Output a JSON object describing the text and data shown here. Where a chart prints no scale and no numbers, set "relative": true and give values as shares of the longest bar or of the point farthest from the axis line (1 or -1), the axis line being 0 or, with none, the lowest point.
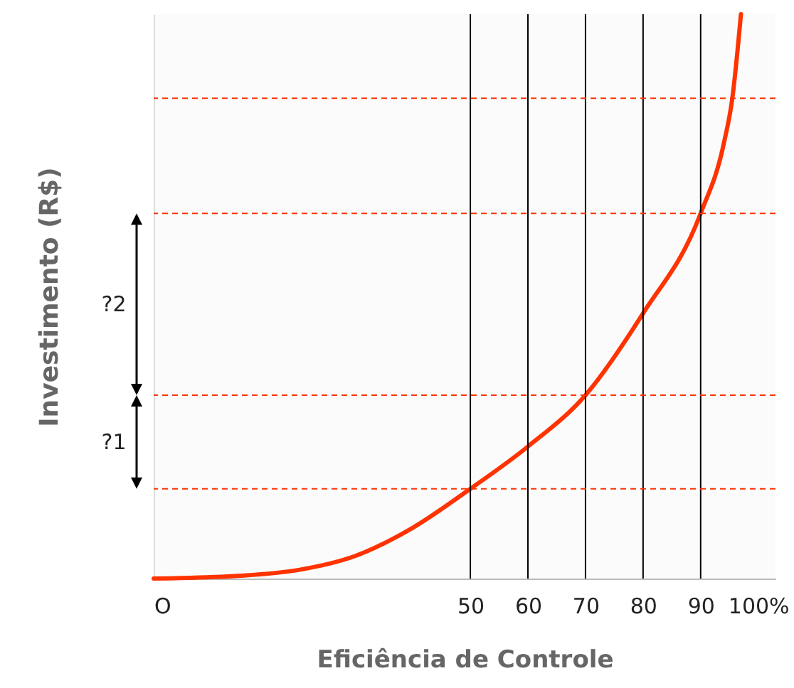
{
  "chart_data": {
    "type": "line",
    "relative": true,
    "xlabel": "Eficiência de Controle",
    "ylabel": "Investimento (R$)",
    "x": [
      -5,
      10,
      20,
      30,
      40,
      50,
      60,
      70,
      80,
      90,
      94,
      95.5,
      97
    ],
    "values": [
      0,
      0.005,
      0.015,
      0.04,
      0.09,
      0.159,
      0.234,
      0.325,
      0.47,
      0.647,
      0.77,
      0.851,
      1
    ],
    "color": "#ff3300",
    "xlim": [
      -5,
      103
    ],
    "xticks": [
      {
        "value": -5,
        "label": "O"
      },
      50,
      60,
      70,
      80,
      90,
      {
        "value": 100,
        "label": "100%"
      }
    ],
    "ref_lines": [
      {
        "axis": "x",
        "value": 50,
        "color": "#000000",
        "line_style": "solid"
      },
      {
        "axis": "x",
        "value": 60,
        "color": "#000000",
        "line_style": "solid"
      },
      {
        "axis": "x",
        "value": 70,
        "color": "#000000",
        "line_style": "solid"
      },
      {
        "axis": "x",
        "value": 80,
        "color": "#000000",
        "line_style": "solid"
      },
      {
        "axis": "x",
        "value": 90,
        "color": "#000000",
        "line_style": "solid"
      },
      {
        "axis": "y",
        "value": 0.159,
        "color": "#ff3300",
        "line_style": "dashed"
      },
      {
        "axis": "y",
        "value": 0.325,
        "color": "#ff3300",
        "line_style": "dashed"
      },
      {
        "axis": "y",
        "value": 0.647,
        "color": "#ff3300",
        "line_style": "dashed"
      },
      {
        "axis": "y",
        "value": 0.851,
        "color": "#ff3300",
        "line_style": "dashed"
      }
    ],
    "annotations": [
      "?1",
      "?2"
    ]
  }
}
